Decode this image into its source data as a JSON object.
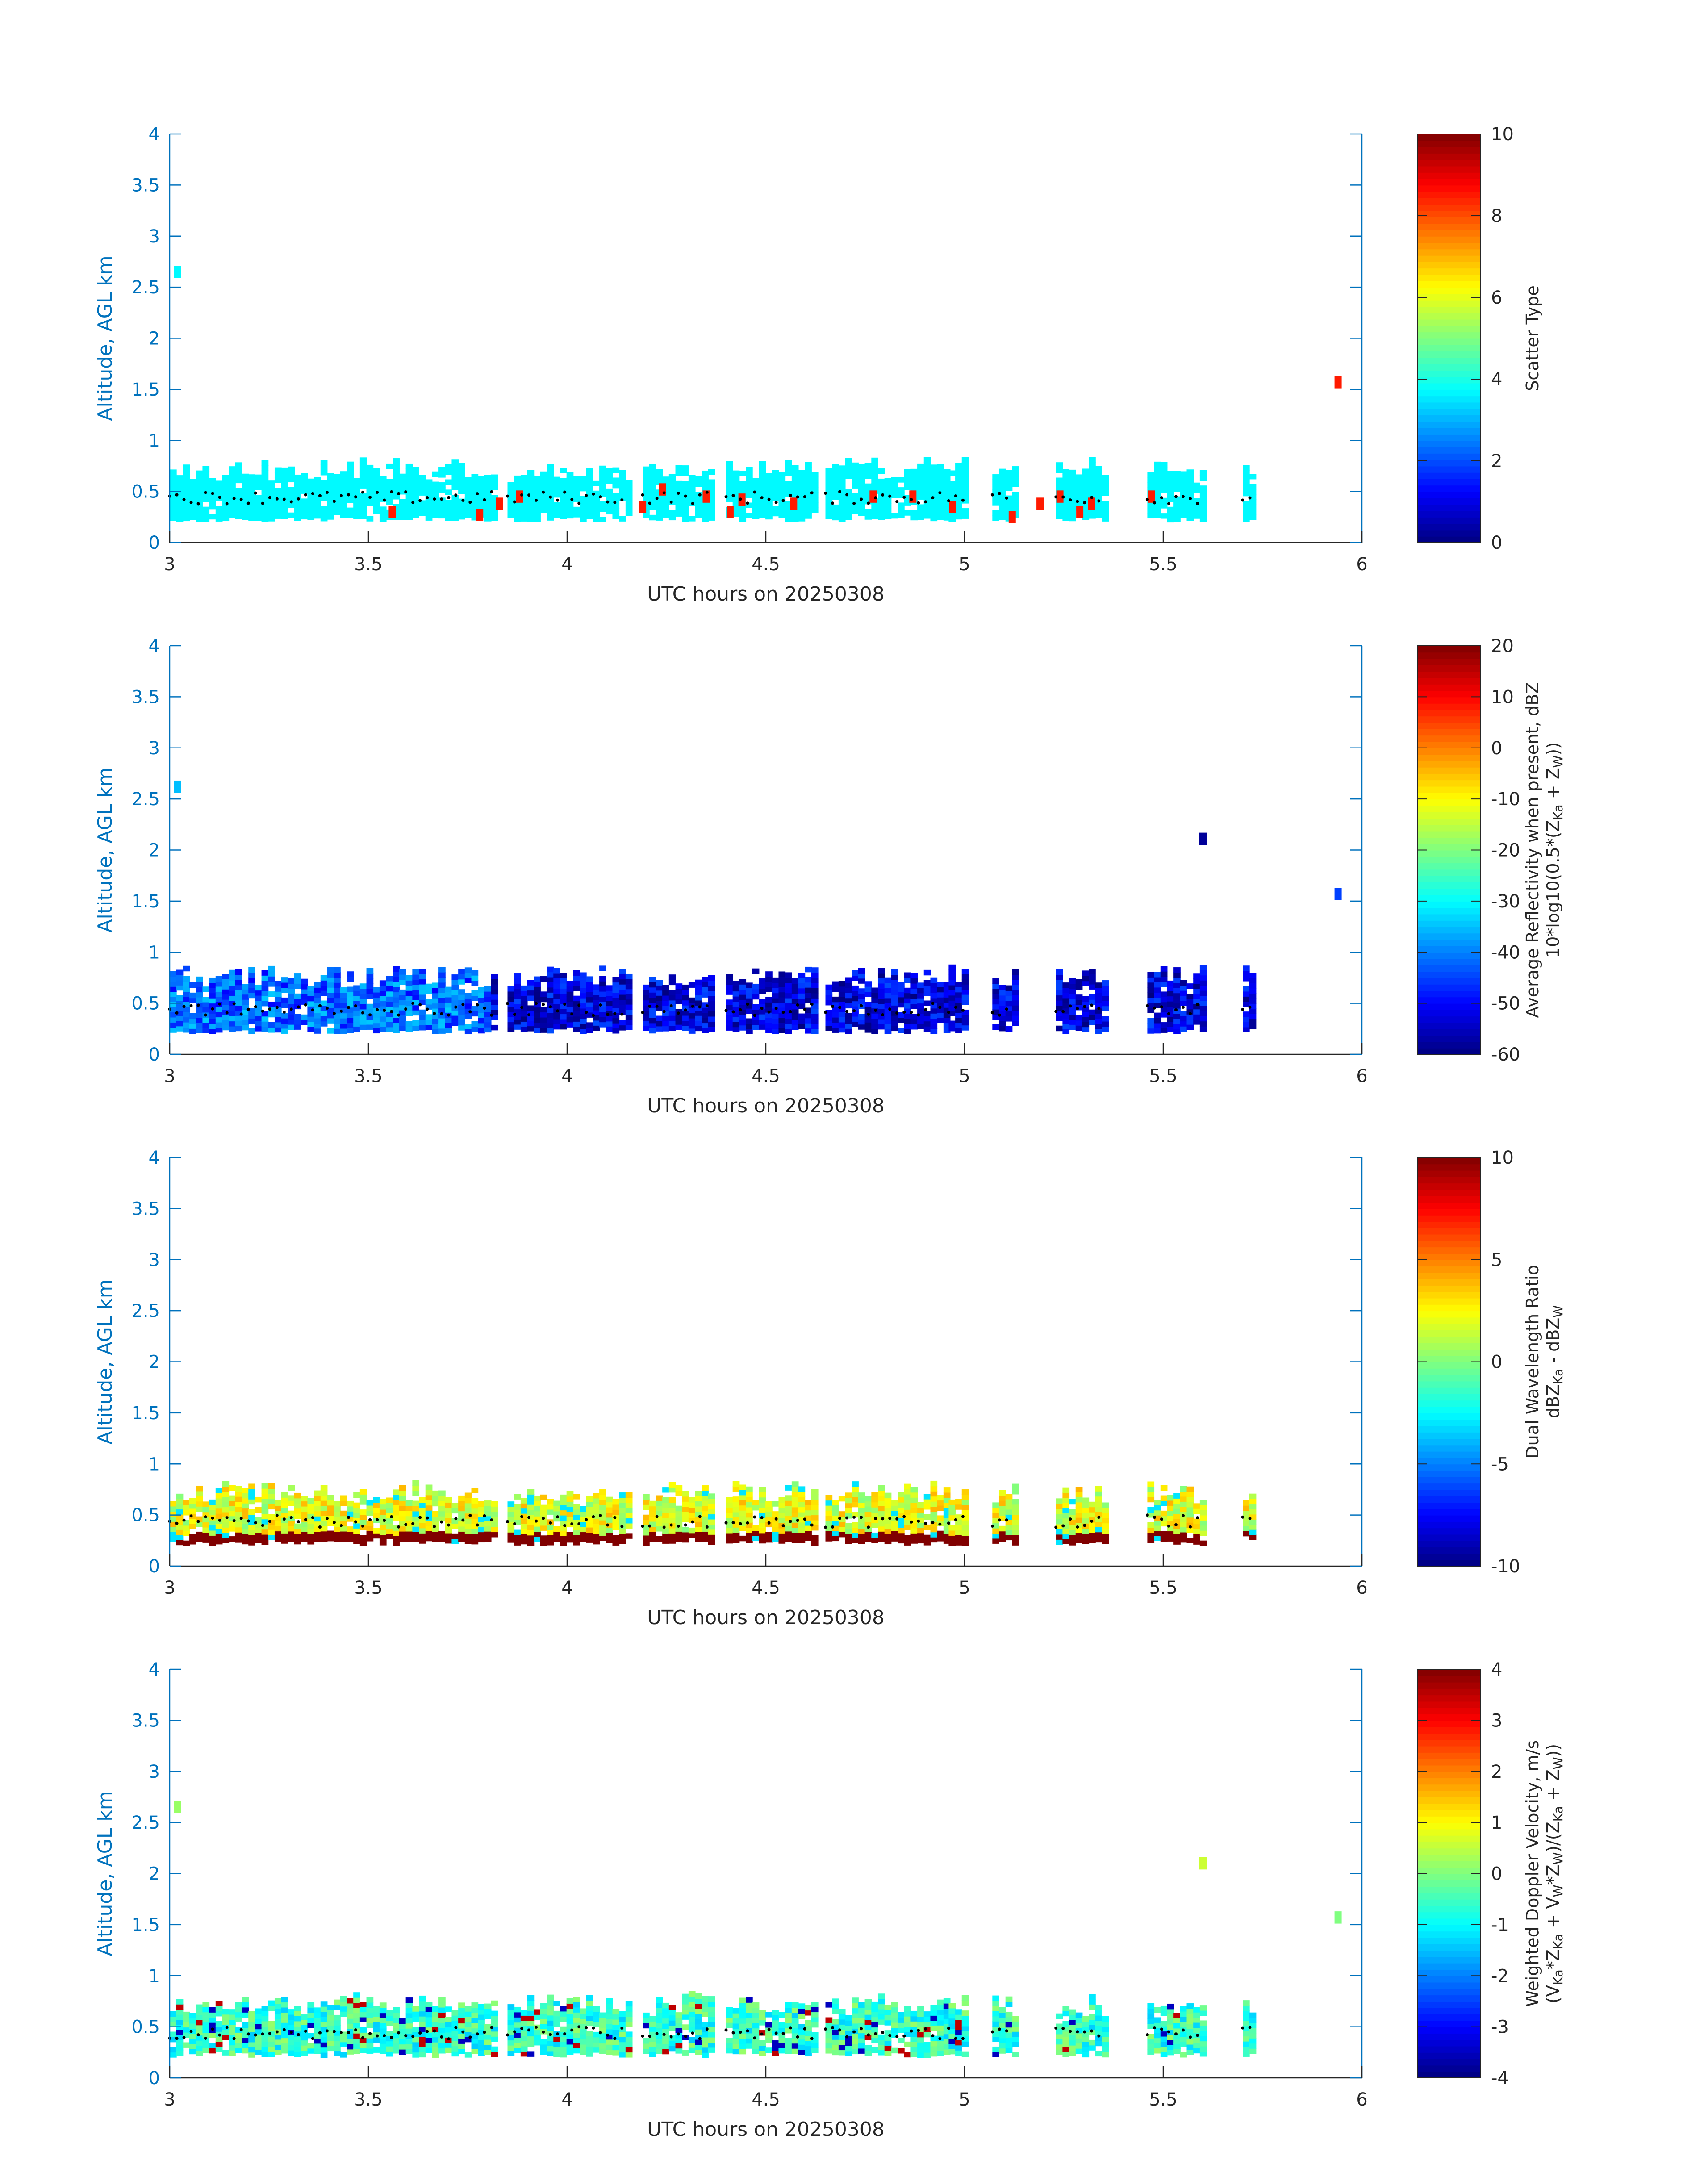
{
  "chart_data": [
    {
      "type": "heatmap",
      "xlabel": "UTC hours on 20250308",
      "ylabel": "Altitude, AGL km",
      "xlim": [
        3,
        6
      ],
      "ylim": [
        0,
        4
      ],
      "xticks": [
        "3",
        "3.5",
        "4",
        "4.5",
        "5",
        "5.5",
        "6"
      ],
      "yticks": [
        "0",
        "0.5",
        "1",
        "1.5",
        "2",
        "2.5",
        "3",
        "3.5",
        "4"
      ],
      "colorbar": {
        "label_lines": [
          "Scatter Type"
        ],
        "range": [
          0,
          10
        ],
        "ticks": [
          "0",
          "2",
          "4",
          "6",
          "8",
          "10"
        ]
      },
      "dominant_value": 3.7,
      "layer_extent_km": [
        0.2,
        0.8
      ],
      "cells": [
        {
          "x": 3.02,
          "y": 2.65,
          "v": 3.7
        },
        {
          "x": 5.94,
          "y": 1.57,
          "v": 8.5
        },
        {
          "x": 3.56,
          "y": 0.3,
          "v": 8.5
        },
        {
          "x": 3.78,
          "y": 0.27,
          "v": 8.5
        },
        {
          "x": 3.83,
          "y": 0.38,
          "v": 8.5
        },
        {
          "x": 3.88,
          "y": 0.45,
          "v": 8.5
        },
        {
          "x": 4.19,
          "y": 0.35,
          "v": 8.5
        },
        {
          "x": 4.24,
          "y": 0.52,
          "v": 8.5
        },
        {
          "x": 4.35,
          "y": 0.45,
          "v": 8.5
        },
        {
          "x": 4.41,
          "y": 0.3,
          "v": 8.5
        },
        {
          "x": 4.44,
          "y": 0.42,
          "v": 8.5
        },
        {
          "x": 4.57,
          "y": 0.38,
          "v": 8.5
        },
        {
          "x": 4.77,
          "y": 0.45,
          "v": 8.5
        },
        {
          "x": 4.87,
          "y": 0.45,
          "v": 8.5
        },
        {
          "x": 4.97,
          "y": 0.35,
          "v": 8.5
        },
        {
          "x": 5.12,
          "y": 0.25,
          "v": 8.5
        },
        {
          "x": 5.19,
          "y": 0.38,
          "v": 8.5
        },
        {
          "x": 5.24,
          "y": 0.45,
          "v": 8.5
        },
        {
          "x": 5.29,
          "y": 0.3,
          "v": 8.5
        },
        {
          "x": 5.32,
          "y": 0.38,
          "v": 8.5
        },
        {
          "x": 5.47,
          "y": 0.45,
          "v": 8.5
        }
      ]
    },
    {
      "type": "heatmap",
      "xlabel": "UTC hours on 20250308",
      "ylabel": "Altitude, AGL km",
      "xlim": [
        3,
        6
      ],
      "ylim": [
        0,
        4
      ],
      "xticks": [
        "3",
        "3.5",
        "4",
        "4.5",
        "5",
        "5.5",
        "6"
      ],
      "yticks": [
        "0",
        "0.5",
        "1",
        "1.5",
        "2",
        "2.5",
        "3",
        "3.5",
        "4"
      ],
      "colorbar": {
        "label_lines": [
          "Average Reflectivity when present, dBZ",
          "10*log10(0.5*(Z",
          "Ka",
          " + Z",
          "W",
          "))"
        ],
        "range": [
          -60,
          20
        ],
        "ticks": [
          "-60",
          "-50",
          "-40",
          "-30",
          "-20",
          "-10",
          "0",
          "10",
          "20"
        ]
      },
      "dominant_value": -52,
      "layer_extent_km": [
        0.2,
        0.85
      ],
      "cells": [
        {
          "x": 3.02,
          "y": 2.62,
          "v": -35
        },
        {
          "x": 5.6,
          "y": 2.11,
          "v": -58
        },
        {
          "x": 5.94,
          "y": 1.57,
          "v": -45
        }
      ]
    },
    {
      "type": "heatmap",
      "xlabel": "UTC hours on 20250308",
      "ylabel": "Altitude, AGL km",
      "xlim": [
        3,
        6
      ],
      "ylim": [
        0,
        4
      ],
      "xticks": [
        "3",
        "3.5",
        "4",
        "4.5",
        "5",
        "5.5",
        "6"
      ],
      "yticks": [
        "0",
        "0.5",
        "1",
        "1.5",
        "2",
        "2.5",
        "3",
        "3.5",
        "4"
      ],
      "colorbar": {
        "label_lines": [
          "Dual Wavelength Ratio",
          "dBZ",
          "Ka",
          " - dBZ",
          "W"
        ],
        "range": [
          -10,
          10
        ],
        "ticks": [
          "-10",
          "-5",
          "0",
          "5",
          "10"
        ]
      },
      "dominant_value": 2,
      "layer_extent_km": [
        0.2,
        0.8
      ],
      "cells": []
    },
    {
      "type": "heatmap",
      "xlabel": "UTC hours on 20250308",
      "ylabel": "Altitude, AGL km",
      "xlim": [
        3,
        6
      ],
      "ylim": [
        0,
        4
      ],
      "xticks": [
        "3",
        "3.5",
        "4",
        "4.5",
        "5",
        "5.5",
        "6"
      ],
      "yticks": [
        "0",
        "0.5",
        "1",
        "1.5",
        "2",
        "2.5",
        "3",
        "3.5",
        "4"
      ],
      "colorbar": {
        "label_lines": [
          "Weighted Doppler Velocity, m/s",
          "(V",
          "Ka",
          "*Z",
          "Ka",
          " + V",
          "W",
          "*Z",
          "W",
          ")/(Z",
          "Ka",
          " + Z",
          "W",
          "))"
        ],
        "range": [
          -4,
          4
        ],
        "ticks": [
          "-4",
          "-3",
          "-2",
          "-1",
          "0",
          "1",
          "2",
          "3",
          "4"
        ]
      },
      "dominant_value": -0.6,
      "layer_extent_km": [
        0.2,
        0.8
      ],
      "cells": [
        {
          "x": 3.02,
          "y": 2.65,
          "v": 0.2
        },
        {
          "x": 5.6,
          "y": 2.1,
          "v": 0.6
        },
        {
          "x": 5.94,
          "y": 1.57,
          "v": 0.0
        }
      ]
    }
  ],
  "segments": [
    [
      3.0,
      3.82
    ],
    [
      3.85,
      4.15
    ],
    [
      4.19,
      4.36
    ],
    [
      4.4,
      4.63
    ],
    [
      4.65,
      4.95
    ],
    [
      4.96,
      5.0
    ],
    [
      5.07,
      5.12
    ],
    [
      5.23,
      5.35
    ],
    [
      5.46,
      5.6
    ],
    [
      5.7,
      5.72
    ]
  ]
}
